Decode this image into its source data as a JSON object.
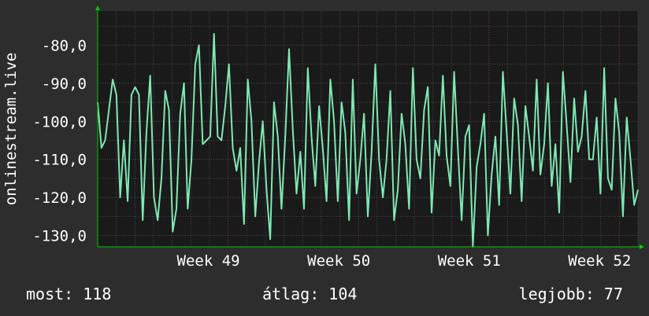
{
  "colors": {
    "background": "#2d2d2d",
    "plot_background": "#1a1a1a",
    "grid": "#4a4a4a",
    "vgrid": "#6a3a3a",
    "line": "#7fe8b4",
    "axis_arrow": "#00cc00"
  },
  "stats": {
    "now_label": "most: 118",
    "avg_label": "átlag: 104",
    "best_label": "legjobb: 77"
  },
  "chart_data": {
    "type": "line",
    "ylabel": "onlinestream.live",
    "ylim": [
      -133,
      -71
    ],
    "yticks": [
      -130,
      -120,
      -110,
      -100,
      -90,
      -80
    ],
    "ytick_labels": [
      "-130,0",
      "-120,0",
      "-110,0",
      "-100,0",
      "-90,0",
      "-80,0"
    ],
    "xlim": [
      0,
      29
    ],
    "xticks": [
      7,
      14,
      21,
      28
    ],
    "xtick_labels": [
      "Week 49",
      "Week 50",
      "Week 51",
      "Week 52"
    ],
    "grid": true,
    "series": [
      {
        "values": [
          -95,
          -107,
          -105,
          -97,
          -89,
          -93,
          -120,
          -105,
          -121,
          -93,
          -91,
          -93,
          -126,
          -103,
          -88,
          -120,
          -126,
          -115,
          -92,
          -97,
          -129,
          -123,
          -98,
          -90,
          -123,
          -110,
          -85,
          -80,
          -106,
          -105,
          -104,
          -77,
          -104,
          -105,
          -96,
          -85,
          -107,
          -113,
          -107,
          -127,
          -89,
          -100,
          -125,
          -111,
          -100,
          -118,
          -131,
          -95,
          -104,
          -123,
          -104,
          -81,
          -102,
          -119,
          -108,
          -123,
          -86,
          -104,
          -117,
          -96,
          -107,
          -121,
          -89,
          -100,
          -121,
          -95,
          -103,
          -126,
          -89,
          -119,
          -110,
          -98,
          -125,
          -108,
          -85,
          -110,
          -120,
          -110,
          -92,
          -126,
          -118,
          -98,
          -106,
          -123,
          -86,
          -110,
          -115,
          -97,
          -91,
          -124,
          -105,
          -109,
          -88,
          -109,
          -117,
          -87,
          -107,
          -126,
          -104,
          -101,
          -133,
          -112,
          -106,
          -98,
          -130,
          -114,
          -104,
          -122,
          -87,
          -103,
          -119,
          -94,
          -101,
          -121,
          -96,
          -104,
          -113,
          -89,
          -114,
          -106,
          -90,
          -117,
          -106,
          -124,
          -87,
          -101,
          -116,
          -94,
          -108,
          -104,
          -92,
          -110,
          -110,
          -99,
          -119,
          -86,
          -115,
          -118,
          -94,
          -103,
          -125,
          -99,
          -110,
          -122,
          -118
        ]
      }
    ]
  }
}
